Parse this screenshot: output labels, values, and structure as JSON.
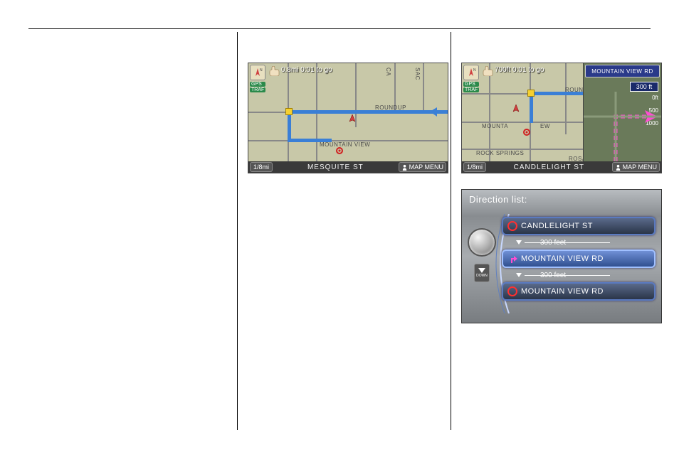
{
  "map1": {
    "distance_status": "0.8mi 0:01 to go",
    "scale": "1/8mi",
    "bottom_street": "MESQUITE ST",
    "map_menu": "MAP MENU",
    "gps": "GPS",
    "traf": "TRAF",
    "roads": {
      "roundup": "ROUNDUP",
      "mountain_view": "MOUNTAIN VIEW",
      "sac": "SAC",
      "ca": "CA"
    },
    "colors": {
      "bg": "#c8c8a8",
      "route": "#3a7fd6",
      "road": "#888888",
      "label": "#4a4a4a"
    }
  },
  "map2": {
    "distance_status": "700ft 0:01 to go",
    "scale": "1/8mi",
    "bottom_street": "CANDLELIGHT ST",
    "map_menu": "MAP MENU",
    "gps": "GPS",
    "traf": "TRAF",
    "next_road": "MOUNTAIN VIEW RD",
    "dist_badge": "300 ft",
    "scale_marks": [
      "0ft",
      "500",
      "1000"
    ],
    "roads": {
      "roun": "ROUN",
      "mountain": "MOUNTA",
      "ew": "EW",
      "rock_springs": "ROCK SPRINGS",
      "rosa": "ROSA"
    },
    "colors": {
      "preview_bg": "#6a7a5a",
      "next_road_bg": "#2a3a8a",
      "pink": "#ff4dd2"
    }
  },
  "dir_list": {
    "title": "Direction list:",
    "down_label": "DOWN",
    "items": [
      {
        "type": "street",
        "icon": "circle",
        "icon_color": "#ff3030",
        "label": "CANDLELIGHT ST",
        "highlight": false
      },
      {
        "type": "dist",
        "label": "300 feet"
      },
      {
        "type": "street",
        "icon": "turn",
        "icon_color": "#ff4dd2",
        "label": "MOUNTAIN VIEW RD",
        "highlight": true
      },
      {
        "type": "dist",
        "label": "300 feet"
      },
      {
        "type": "street",
        "icon": "circle",
        "icon_color": "#ff3030",
        "label": "MOUNTAIN VIEW RD",
        "highlight": false
      }
    ]
  }
}
